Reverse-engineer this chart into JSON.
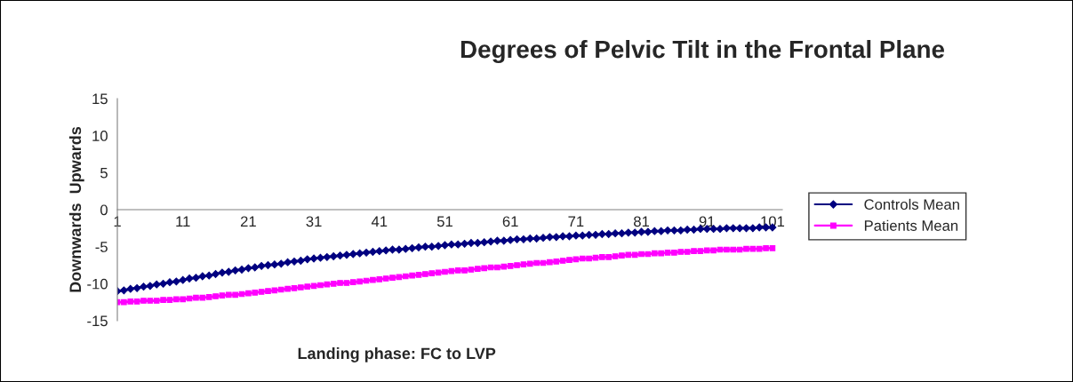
{
  "chart_data": {
    "type": "line",
    "title": "Degrees of Pelvic Tilt in the Frontal Plane",
    "xlabel": "Landing phase: FC to LVP",
    "ylabel": "Downwards  Upwards",
    "categories": [
      "1",
      null,
      null,
      null,
      null,
      null,
      null,
      null,
      null,
      null,
      "11",
      null,
      null,
      null,
      null,
      null,
      null,
      null,
      null,
      null,
      "21",
      null,
      null,
      null,
      null,
      null,
      null,
      null,
      null,
      null,
      "31",
      null,
      null,
      null,
      null,
      null,
      null,
      null,
      null,
      null,
      "41",
      null,
      null,
      null,
      null,
      null,
      null,
      null,
      null,
      null,
      "51",
      null,
      null,
      null,
      null,
      null,
      null,
      null,
      null,
      null,
      "61",
      null,
      null,
      null,
      null,
      null,
      null,
      null,
      null,
      null,
      "71",
      null,
      null,
      null,
      null,
      null,
      null,
      null,
      null,
      null,
      "81",
      null,
      null,
      null,
      null,
      null,
      null,
      null,
      null,
      null,
      "91",
      null,
      null,
      null,
      null,
      null,
      null,
      null,
      null,
      null,
      "101"
    ],
    "series": [
      {
        "name": "Controls Mean",
        "color": "#000080",
        "marker": "diamond",
        "values": [
          -11.0,
          -10.9,
          -10.7,
          -10.6,
          -10.4,
          -10.3,
          -10.1,
          -10.0,
          -9.8,
          -9.7,
          -9.5,
          -9.3,
          -9.2,
          -9.0,
          -8.9,
          -8.7,
          -8.5,
          -8.4,
          -8.2,
          -8.1,
          -7.9,
          -7.8,
          -7.6,
          -7.5,
          -7.4,
          -7.3,
          -7.1,
          -7.0,
          -6.9,
          -6.7,
          -6.6,
          -6.5,
          -6.4,
          -6.3,
          -6.2,
          -6.1,
          -6.0,
          -5.9,
          -5.8,
          -5.7,
          -5.6,
          -5.5,
          -5.4,
          -5.4,
          -5.3,
          -5.2,
          -5.1,
          -5.0,
          -5.0,
          -4.9,
          -4.8,
          -4.7,
          -4.7,
          -4.6,
          -4.5,
          -4.5,
          -4.4,
          -4.3,
          -4.2,
          -4.2,
          -4.1,
          -4.0,
          -4.0,
          -3.9,
          -3.9,
          -3.8,
          -3.7,
          -3.7,
          -3.6,
          -3.6,
          -3.5,
          -3.5,
          -3.4,
          -3.4,
          -3.3,
          -3.3,
          -3.2,
          -3.2,
          -3.1,
          -3.1,
          -3.0,
          -3.0,
          -2.9,
          -2.9,
          -2.8,
          -2.8,
          -2.8,
          -2.7,
          -2.7,
          -2.6,
          -2.6,
          -2.6,
          -2.6,
          -2.5,
          -2.5,
          -2.5,
          -2.5,
          -2.5,
          -2.4,
          -2.4,
          -2.4
        ]
      },
      {
        "name": "Patients Mean",
        "color": "#ff00ff",
        "marker": "square",
        "values": [
          -12.5,
          -12.5,
          -12.4,
          -12.4,
          -12.3,
          -12.3,
          -12.3,
          -12.2,
          -12.2,
          -12.1,
          -12.1,
          -12.0,
          -11.9,
          -11.9,
          -11.8,
          -11.7,
          -11.6,
          -11.5,
          -11.5,
          -11.4,
          -11.3,
          -11.2,
          -11.1,
          -11.0,
          -10.9,
          -10.8,
          -10.7,
          -10.6,
          -10.5,
          -10.4,
          -10.3,
          -10.2,
          -10.1,
          -10.0,
          -9.9,
          -9.9,
          -9.8,
          -9.7,
          -9.6,
          -9.5,
          -9.4,
          -9.3,
          -9.2,
          -9.1,
          -9.0,
          -8.9,
          -8.8,
          -8.7,
          -8.6,
          -8.5,
          -8.4,
          -8.3,
          -8.2,
          -8.2,
          -8.1,
          -8.0,
          -7.9,
          -7.8,
          -7.8,
          -7.7,
          -7.6,
          -7.5,
          -7.4,
          -7.3,
          -7.2,
          -7.2,
          -7.1,
          -7.0,
          -6.9,
          -6.8,
          -6.7,
          -6.6,
          -6.6,
          -6.5,
          -6.4,
          -6.4,
          -6.3,
          -6.2,
          -6.1,
          -6.1,
          -6.0,
          -6.0,
          -5.9,
          -5.9,
          -5.8,
          -5.8,
          -5.7,
          -5.7,
          -5.6,
          -5.6,
          -5.5,
          -5.5,
          -5.4,
          -5.4,
          -5.4,
          -5.4,
          -5.3,
          -5.3,
          -5.3,
          -5.2,
          -5.2
        ]
      }
    ],
    "ylim": [
      -15,
      15
    ],
    "yticks": [
      -15,
      -10,
      -5,
      0,
      5,
      10,
      15
    ],
    "grid": false,
    "legend": "right"
  }
}
